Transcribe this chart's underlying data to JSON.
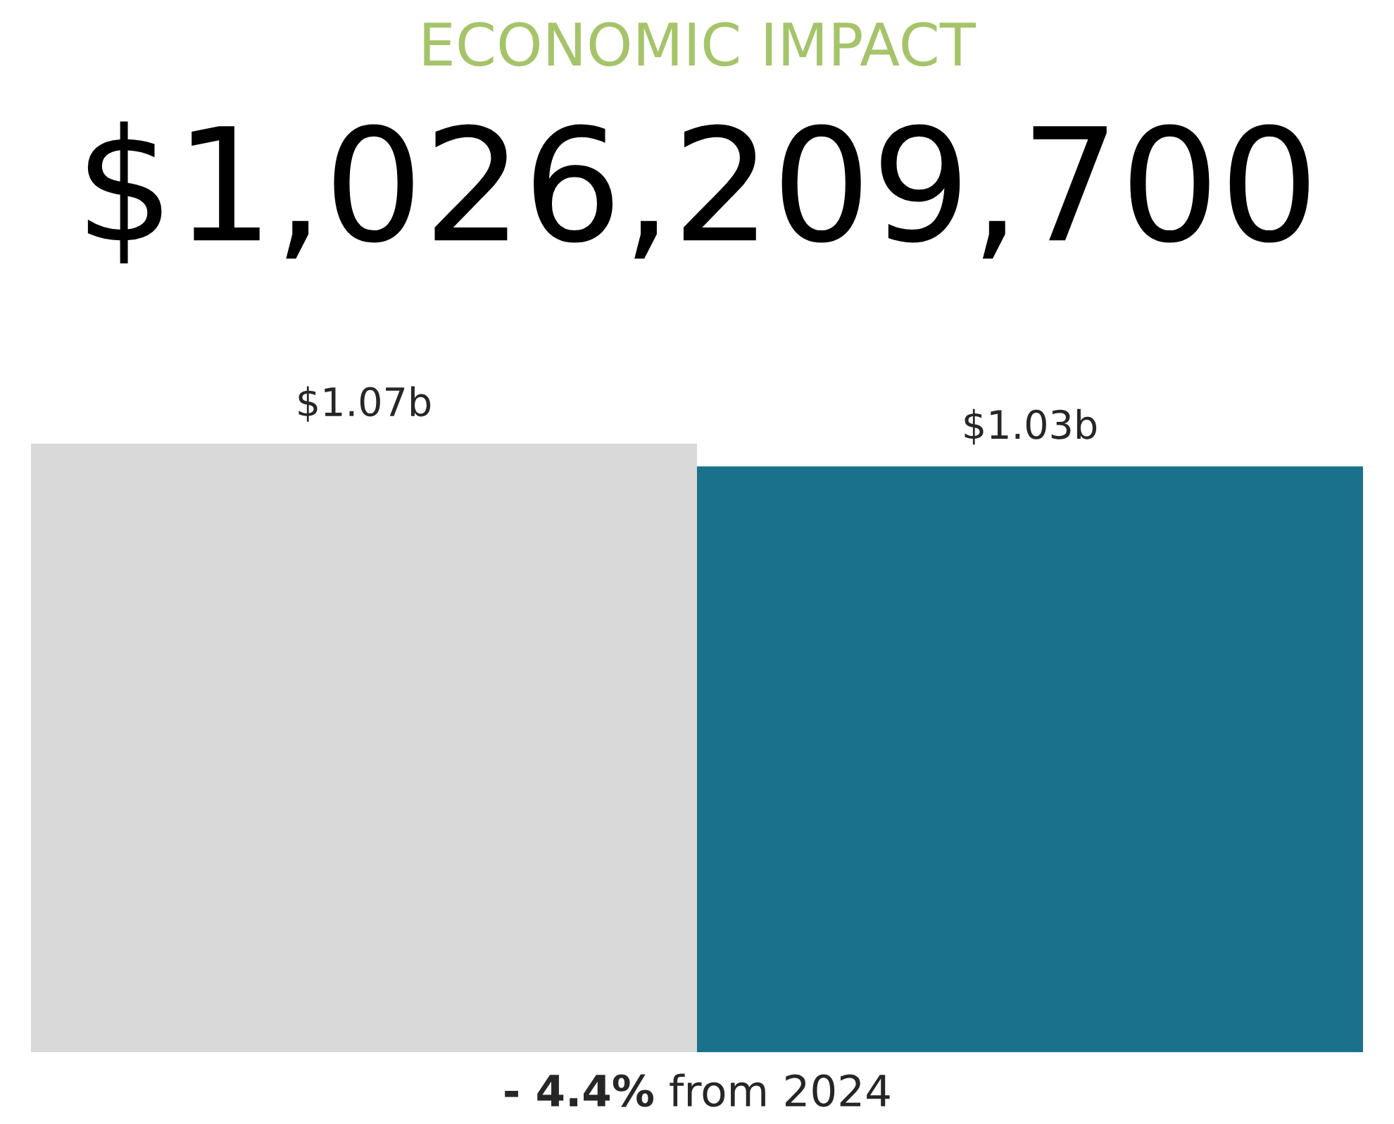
{
  "chart_data": {
    "type": "bar",
    "title": "ECONOMIC IMPACT",
    "subtitle": "$1,026,209,700",
    "categories": [
      null,
      null
    ],
    "values": [
      1.07,
      1.03
    ],
    "colors": [
      "#d9d9d9",
      "#1a718c"
    ],
    "value_labels": [
      "$1.07b",
      "$1.03b"
    ],
    "annotations": [
      "- 4.4%",
      "from 2024"
    ],
    "grid": false,
    "legend": false
  }
}
